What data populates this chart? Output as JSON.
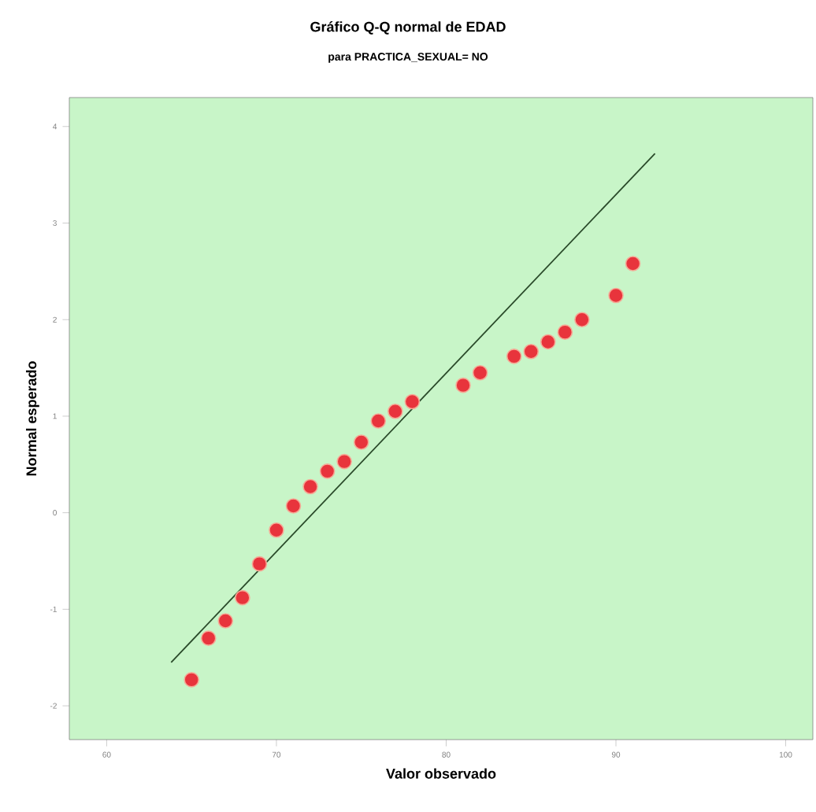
{
  "chart_data": {
    "type": "scatter",
    "title": "Gráfico Q-Q normal de EDAD",
    "subtitle": "para PRACTICA_SEXUAL= NO",
    "xlabel": "Valor observado",
    "ylabel": "Normal esperado",
    "xlim": [
      57.8,
      101.6
    ],
    "ylim": [
      -2.35,
      4.3
    ],
    "xticks": [
      60,
      70,
      80,
      90,
      100
    ],
    "yticks": [
      -2,
      -1,
      0,
      1,
      2,
      3,
      4
    ],
    "grid": false,
    "series": [
      {
        "color": "#e8343c",
        "marker": "circle",
        "x": [
          65,
          66,
          67,
          68,
          69,
          70,
          71,
          72,
          73,
          74,
          75,
          76,
          77,
          78,
          81,
          82,
          84,
          85,
          86,
          87,
          88,
          90,
          91
        ],
        "values": [
          -1.73,
          -1.3,
          -1.12,
          -0.88,
          -0.53,
          -0.18,
          0.07,
          0.27,
          0.43,
          0.53,
          0.73,
          0.95,
          1.05,
          1.15,
          1.32,
          1.45,
          1.62,
          1.67,
          1.77,
          1.87,
          2.0,
          2.25,
          2.58
        ]
      },
      {
        "type": "line",
        "color": "#2a4a2a",
        "marker": "none",
        "x": [
          63.8,
          92.3
        ],
        "values": [
          -1.55,
          3.72
        ]
      }
    ]
  }
}
